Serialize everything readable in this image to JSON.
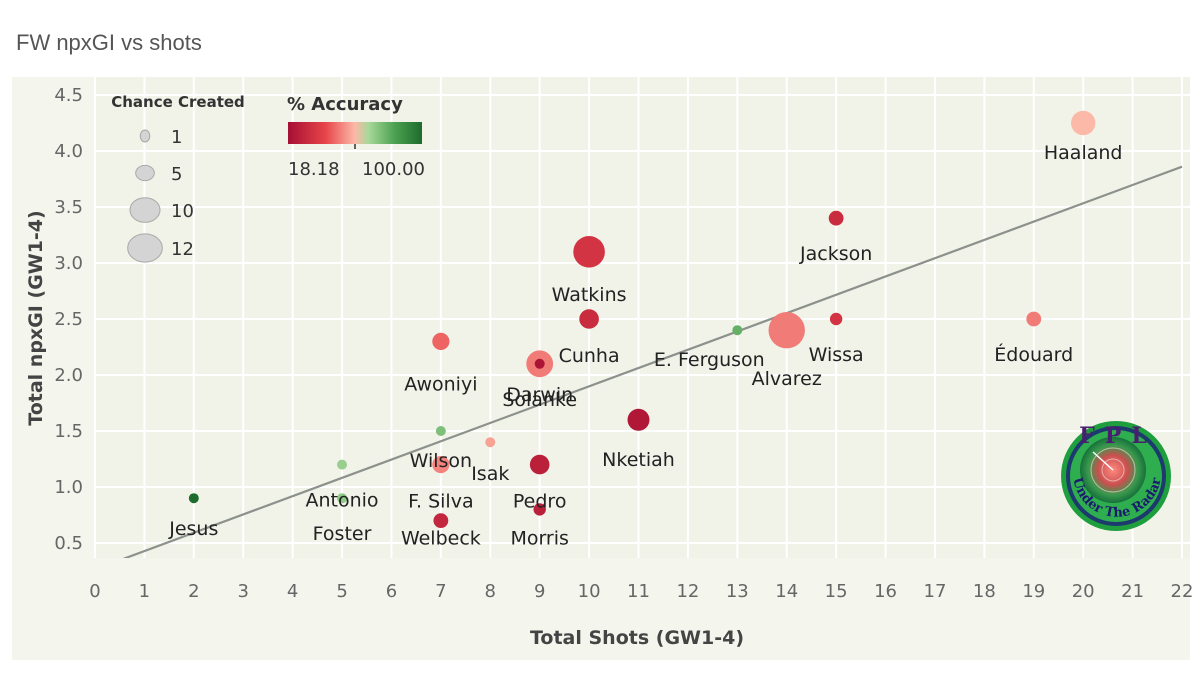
{
  "page": {
    "title": "FW npxGI vs shots"
  },
  "colors": {
    "low": "#a50f33",
    "mid": "#fa9f87",
    "high": "#1e6b2e",
    "trendline": "#8c918c",
    "plot_bg": "#f4f6ee"
  },
  "chart_data": {
    "type": "scatter",
    "xlabel": "Total Shots (GW1-4)",
    "ylabel": "Total npxGI (GW1-4)",
    "xlim": [
      0,
      22
    ],
    "ylim": [
      0.35,
      4.6
    ],
    "x_ticks": [
      0,
      1,
      2,
      3,
      4,
      5,
      6,
      7,
      8,
      9,
      10,
      11,
      12,
      13,
      14,
      15,
      16,
      17,
      18,
      19,
      20,
      21,
      22
    ],
    "y_ticks": [
      0.5,
      1.0,
      1.5,
      2.0,
      2.5,
      3.0,
      3.5,
      4.0,
      4.5
    ],
    "grid": true,
    "trendline": {
      "x": [
        0.4,
        22
      ],
      "y": [
        0.33,
        3.86
      ]
    },
    "size_legend": {
      "title": "Chance Created",
      "values": [
        1,
        5,
        10,
        12
      ]
    },
    "color_legend": {
      "title": "% Accuracy",
      "min_label": "18.18",
      "max_label": "100.00"
    },
    "points": [
      {
        "name": "Haaland",
        "x": 20,
        "y": 4.25,
        "chance_created": 7,
        "accuracy": 55
      },
      {
        "name": "Jackson",
        "x": 15,
        "y": 3.4,
        "chance_created": 3,
        "accuracy": 30
      },
      {
        "name": "Watkins",
        "x": 10,
        "y": 3.1,
        "chance_created": 10,
        "accuracy": 33
      },
      {
        "name": "Cunha",
        "x": 10,
        "y": 2.5,
        "chance_created": 5,
        "accuracy": 30
      },
      {
        "name": "E. Ferguson",
        "x": 13,
        "y": 2.4,
        "chance_created": 1,
        "accuracy": 75
      },
      {
        "name": "Alvarez",
        "x": 14,
        "y": 2.4,
        "chance_created": 12,
        "accuracy": 47
      },
      {
        "name": "Wissa",
        "x": 15,
        "y": 2.5,
        "chance_created": 2,
        "accuracy": 33
      },
      {
        "name": "Édouard",
        "x": 19,
        "y": 2.5,
        "chance_created": 3,
        "accuracy": 47
      },
      {
        "name": "Awoniyi",
        "x": 7,
        "y": 2.3,
        "chance_created": 4,
        "accuracy": 44
      },
      {
        "name": "Darwin",
        "x": 9,
        "y": 2.1,
        "chance_created": 8,
        "accuracy": 47
      },
      {
        "name": "Solanke",
        "x": 9,
        "y": 2.1,
        "chance_created": 1,
        "accuracy": 20
      },
      {
        "name": "Nketiah",
        "x": 11,
        "y": 1.6,
        "chance_created": 6,
        "accuracy": 22
      },
      {
        "name": "Wilson",
        "x": 7,
        "y": 1.5,
        "chance_created": 1,
        "accuracy": 70
      },
      {
        "name": "Isak",
        "x": 8,
        "y": 1.4,
        "chance_created": 1,
        "accuracy": 52
      },
      {
        "name": "F. Silva",
        "x": 7,
        "y": 1.2,
        "chance_created": 4,
        "accuracy": 48
      },
      {
        "name": "Pedro",
        "x": 9,
        "y": 1.2,
        "chance_created": 5,
        "accuracy": 25
      },
      {
        "name": "Antonio",
        "x": 5,
        "y": 1.2,
        "chance_created": 1,
        "accuracy": 65
      },
      {
        "name": "Jesus",
        "x": 2,
        "y": 0.9,
        "chance_created": 1,
        "accuracy": 100
      },
      {
        "name": "Foster",
        "x": 5,
        "y": 0.9,
        "chance_created": 1,
        "accuracy": 67
      },
      {
        "name": "Welbeck",
        "x": 7,
        "y": 0.7,
        "chance_created": 3,
        "accuracy": 28
      },
      {
        "name": "Morris",
        "x": 9,
        "y": 0.8,
        "chance_created": 2,
        "accuracy": 25
      }
    ]
  },
  "logo": {
    "top_text": "FPL",
    "bottom_text": "Under The Radar"
  }
}
